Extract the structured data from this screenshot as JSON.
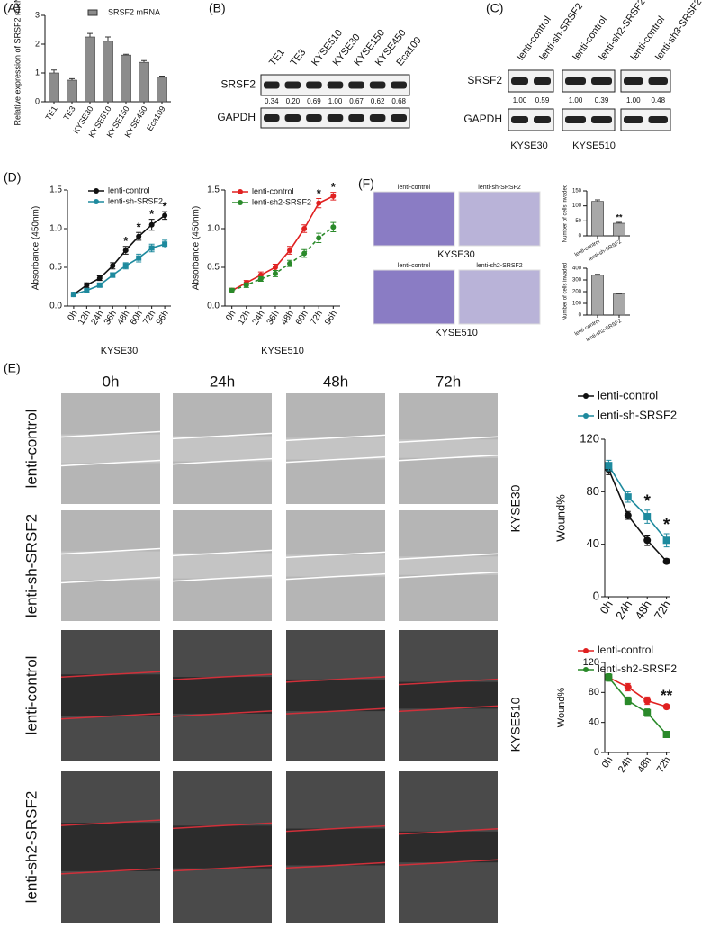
{
  "panels": [
    "(A)",
    "(B)",
    "(C)",
    "(D)",
    "(E)",
    "(F)"
  ],
  "blot_b": {
    "lanes": [
      "TE1",
      "TE3",
      "KYSE510",
      "KYSE30",
      "KYSE150",
      "KYSE450",
      "Eca109"
    ],
    "proteins": [
      "SRSF2",
      "GAPDH"
    ],
    "ratios": [
      "0.34",
      "0.20",
      "0.69",
      "1.00",
      "0.67",
      "0.62",
      "0.68"
    ]
  },
  "blot_c": {
    "proteins": [
      "SRSF2",
      "GAPDH"
    ],
    "groups": [
      {
        "lanes": [
          "lenti-control",
          "lenti-sh-SRSF2"
        ],
        "ratios": [
          "1.00",
          "0.59"
        ]
      },
      {
        "lanes": [
          "lenti-control",
          "lenti-sh2-SRSF2"
        ],
        "ratios": [
          "1.00",
          "0.39"
        ]
      },
      {
        "lanes": [
          "lenti-control",
          "lenti-sh3-SRSF2"
        ],
        "ratios": [
          "1.00",
          "0.48"
        ]
      }
    ],
    "cell_lines": [
      "KYSE30",
      "KYSE510"
    ]
  },
  "invasion": {
    "rows": [
      {
        "images": [
          "lenti-control",
          "lenti-sh-SRSF2"
        ],
        "cell_line": "KYSE30"
      },
      {
        "images": [
          "lenti-control",
          "lenti-sh2-SRSF2"
        ],
        "cell_line": "KYSE510"
      }
    ]
  },
  "wound": {
    "times": [
      "0h",
      "24h",
      "48h",
      "72h"
    ],
    "rows": [
      "lenti-control",
      "lenti-sh-SRSF2",
      "lenti-control",
      "lenti-sh2-SRSF2"
    ],
    "cell_lines": [
      "KYSE30",
      "KYSE510"
    ]
  },
  "chart_data": [
    {
      "type": "bar",
      "categories": [
        "TE1",
        "TE3",
        "KYSE30",
        "KYSE510",
        "KYSE150",
        "KYSE450",
        "Eca109"
      ],
      "series": [
        {
          "name": "SRSF2 mRNA",
          "color": "#8c8c8c",
          "values": [
            1.0,
            0.75,
            2.25,
            2.1,
            1.62,
            1.37,
            0.85
          ],
          "errors": [
            0.1,
            0.05,
            0.12,
            0.15,
            0.03,
            0.06,
            0.04
          ]
        }
      ],
      "ylabel": "Relative expression of SRSF2 mRNA",
      "ylim": [
        0,
        3
      ],
      "yticks": [
        0,
        1,
        2,
        3
      ]
    },
    {
      "type": "line",
      "categories": [
        "0h",
        "12h",
        "24h",
        "36h",
        "48h",
        "60h",
        "72h",
        "96h"
      ],
      "series": [
        {
          "name": "lenti-control",
          "color": "#111111",
          "marker": "circle",
          "values": [
            0.15,
            0.27,
            0.36,
            0.52,
            0.72,
            0.9,
            1.05,
            1.17
          ],
          "errors": [
            0.02,
            0.03,
            0.03,
            0.04,
            0.05,
            0.05,
            0.07,
            0.05
          ]
        },
        {
          "name": "lenti-sh-SRSF2",
          "color": "#1e8a9e",
          "marker": "square",
          "values": [
            0.15,
            0.2,
            0.27,
            0.4,
            0.52,
            0.62,
            0.75,
            0.8
          ],
          "errors": [
            0.02,
            0.02,
            0.02,
            0.03,
            0.04,
            0.05,
            0.05,
            0.05
          ]
        }
      ],
      "annotations": [
        {
          "text": "*",
          "x": "48h"
        },
        {
          "text": "*",
          "x": "60h"
        },
        {
          "text": "*",
          "x": "72h"
        },
        {
          "text": "*",
          "x": "96h"
        }
      ],
      "xlabel": "KYSE30",
      "ylabel": "Absorbance (450nm)",
      "ylim": [
        0,
        1.5
      ],
      "yticks": [
        {
          "value": 0,
          "label": "0.0"
        },
        0.5,
        {
          "value": 1,
          "label": "1.0"
        },
        1.5
      ]
    },
    {
      "type": "line",
      "categories": [
        "0h",
        "12h",
        "24h",
        "36h",
        "48h",
        "60h",
        "72h",
        "96h"
      ],
      "series": [
        {
          "name": "lenti-control",
          "color": "#e02020",
          "marker": "circle",
          "values": [
            0.2,
            0.3,
            0.4,
            0.5,
            0.72,
            1.0,
            1.33,
            1.42
          ],
          "errors": [
            0.03,
            0.03,
            0.04,
            0.04,
            0.05,
            0.05,
            0.06,
            0.05
          ]
        },
        {
          "name": "lenti-sh2-SRSF2",
          "color": "#2a8a2a",
          "marker": "circle",
          "dash": true,
          "values": [
            0.2,
            0.27,
            0.35,
            0.42,
            0.55,
            0.68,
            0.88,
            1.02
          ],
          "errors": [
            0.03,
            0.03,
            0.03,
            0.04,
            0.04,
            0.05,
            0.06,
            0.06
          ]
        }
      ],
      "annotations": [
        {
          "text": "*",
          "x": "72h"
        },
        {
          "text": "*",
          "x": "96h"
        }
      ],
      "xlabel": "KYSE510",
      "ylabel": "Absorbance (450nm)",
      "ylim": [
        0,
        1.5
      ],
      "yticks": [
        {
          "value": 0,
          "label": "0.0"
        },
        0.5,
        {
          "value": 1,
          "label": "1.0"
        },
        1.5
      ]
    },
    {
      "type": "bar",
      "categories": [
        "lenti-control",
        "lenti-sh-SRSF2"
      ],
      "series": [
        {
          "color": "#a8a8a8",
          "values": [
            115,
            42
          ],
          "errors": [
            5,
            3
          ]
        }
      ],
      "annotations": [
        {
          "text": "**",
          "x": "lenti-sh-SRSF2"
        }
      ],
      "ylabel": "Number of cells invaded",
      "ylim": [
        0,
        150
      ],
      "yticks": [
        0,
        50,
        100,
        150
      ]
    },
    {
      "type": "bar",
      "categories": [
        "lenti-control",
        "lenti-sh2-SRSF2"
      ],
      "series": [
        {
          "color": "#a8a8a8",
          "values": [
            340,
            180
          ],
          "errors": [
            8,
            5
          ]
        }
      ],
      "ylabel": "Number of cells invaded",
      "ylim": [
        0,
        400
      ],
      "yticks": [
        0,
        100,
        200,
        300,
        400
      ]
    },
    {
      "type": "line",
      "categories": [
        "0h",
        "24h",
        "48h",
        "72h"
      ],
      "series": [
        {
          "name": "lenti-control",
          "color": "#111111",
          "marker": "circle",
          "values": [
            97,
            62,
            43,
            27
          ],
          "errors": [
            4,
            3,
            4,
            2
          ]
        },
        {
          "name": "lenti-sh-SRSF2",
          "color": "#1e8a9e",
          "marker": "square",
          "values": [
            100,
            76,
            61,
            43
          ],
          "errors": [
            4,
            4,
            5,
            5
          ]
        }
      ],
      "annotations": [
        {
          "text": "*",
          "x": "48h"
        },
        {
          "text": "*",
          "x": "72h"
        }
      ],
      "ylabel": "Wound%",
      "ylim": [
        0,
        120
      ],
      "yticks": [
        0,
        40,
        80,
        120
      ]
    },
    {
      "type": "line",
      "categories": [
        "0h",
        "24h",
        "48h",
        "72h"
      ],
      "series": [
        {
          "name": "lenti-control",
          "color": "#e02020",
          "marker": "circle",
          "values": [
            100,
            87,
            69,
            61
          ],
          "errors": [
            4,
            5,
            5,
            3
          ]
        },
        {
          "name": "lenti-sh2-SRSF2",
          "color": "#2a8a2a",
          "marker": "square",
          "values": [
            100,
            69,
            53,
            24
          ],
          "errors": [
            5,
            5,
            5,
            4
          ]
        }
      ],
      "annotations": [
        {
          "text": "**",
          "x": "72h"
        }
      ],
      "ylabel": "Wound%",
      "ylim": [
        0,
        120
      ],
      "yticks": [
        0,
        40,
        80,
        120
      ]
    }
  ]
}
